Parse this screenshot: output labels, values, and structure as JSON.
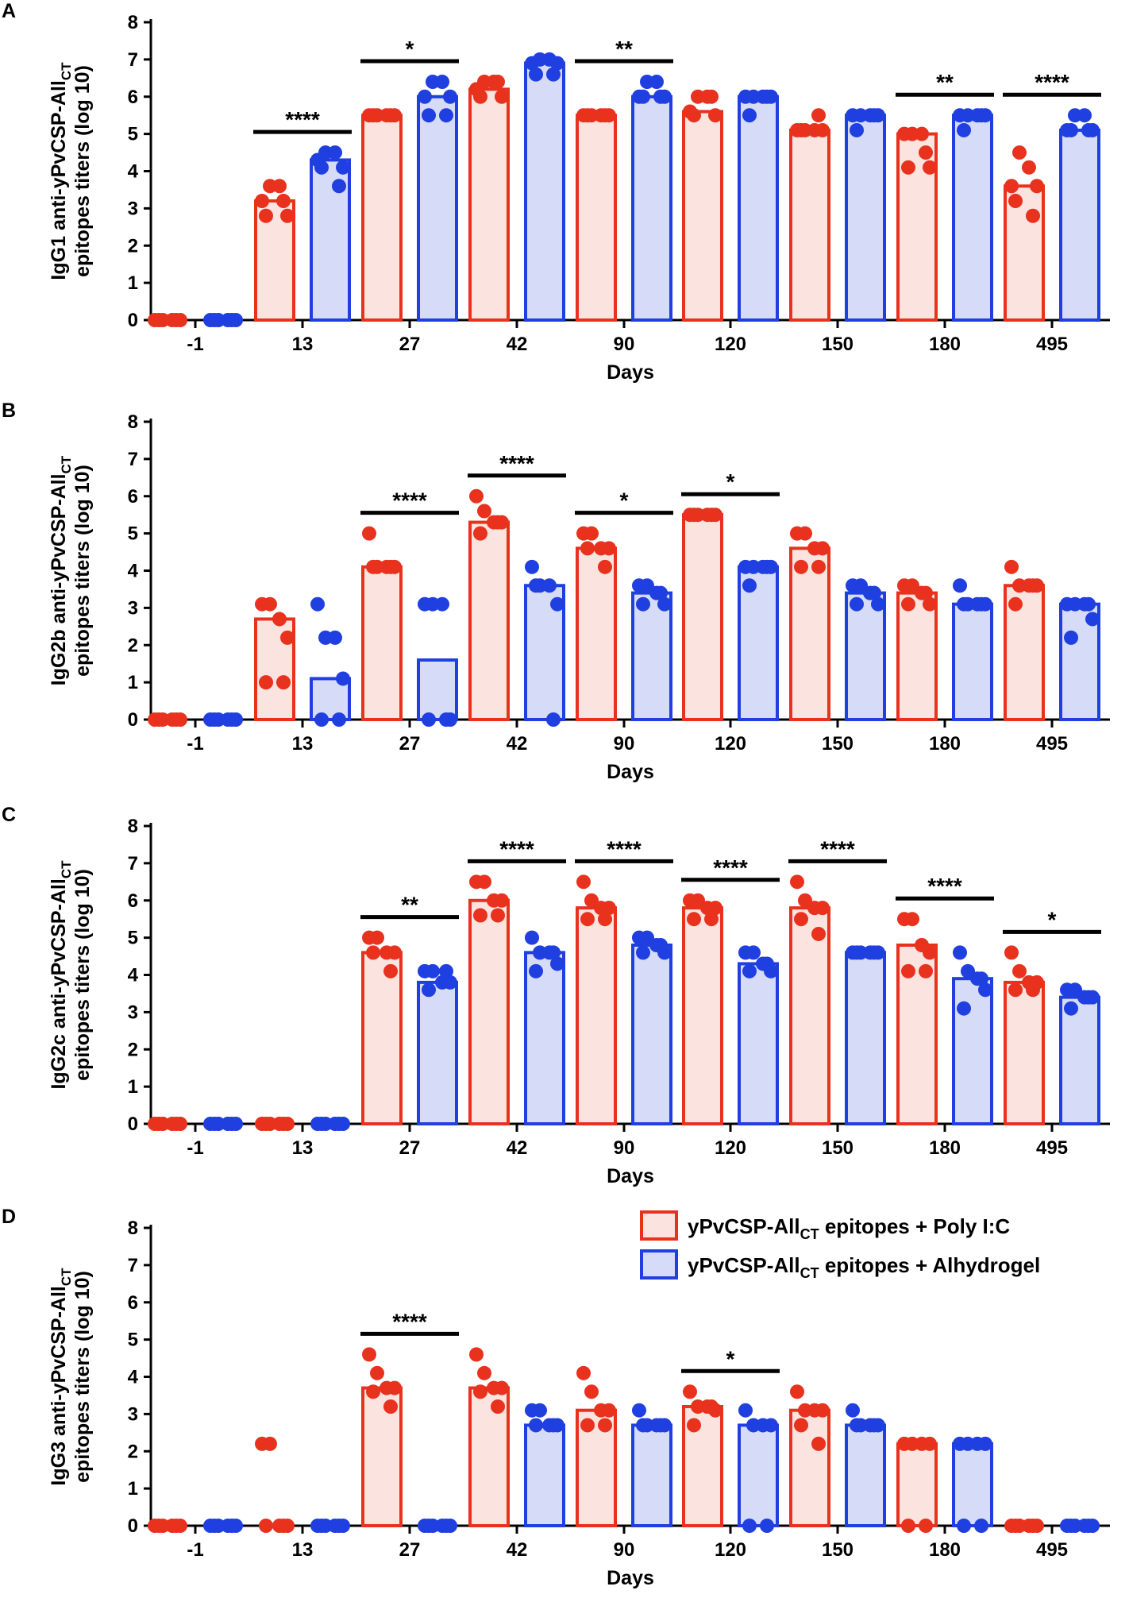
{
  "chart_data": [
    {
      "type": "bar",
      "panel": "A",
      "ylabel_line1": "IgG1 anti-yPvCSP-All",
      "ylabel_sub": "CT",
      "ylabel_line2": "epitopes titers (log 10)",
      "xlabel": "Days",
      "categories": [
        "-1",
        "13",
        "27",
        "42",
        "90",
        "120",
        "150",
        "180",
        "495"
      ],
      "ylim": [
        0,
        8
      ],
      "yticks": [
        "0",
        "1",
        "2",
        "3",
        "4",
        "5",
        "6",
        "7",
        "8"
      ],
      "series": [
        {
          "name": "Poly I:C",
          "values": [
            0,
            3.2,
            5.5,
            6.2,
            5.5,
            5.6,
            5.1,
            5.0,
            3.6
          ],
          "points": [
            [
              0,
              0,
              0,
              0,
              0,
              0
            ],
            [
              3.2,
              3.6,
              3.6,
              2.8,
              2.8,
              3.2
            ],
            [
              5.5,
              5.5,
              5.5,
              5.5,
              5.5,
              5.5
            ],
            [
              6.2,
              6.4,
              6.4,
              6.0,
              6.0,
              6.4
            ],
            [
              5.5,
              5.5,
              5.5,
              5.5,
              5.5,
              5.5
            ],
            [
              5.6,
              6.0,
              6.0,
              5.5,
              5.5,
              6.0
            ],
            [
              5.1,
              5.1,
              5.1,
              5.1,
              5.1,
              5.5
            ],
            [
              5.0,
              5.0,
              5.0,
              4.1,
              4.1,
              4.5
            ],
            [
              3.6,
              4.5,
              4.1,
              3.6,
              3.2,
              2.8
            ]
          ]
        },
        {
          "name": "Alhydrogel",
          "values": [
            0,
            4.3,
            6.0,
            6.9,
            6.0,
            6.0,
            5.5,
            5.5,
            5.1
          ],
          "points": [
            [
              0,
              0,
              0,
              0,
              0,
              0
            ],
            [
              4.3,
              4.5,
              4.5,
              4.1,
              4.1,
              3.6
            ],
            [
              6.0,
              6.4,
              6.4,
              6.0,
              5.5,
              5.5
            ],
            [
              6.9,
              7.0,
              7.0,
              6.9,
              6.6,
              6.6
            ],
            [
              6.0,
              6.4,
              6.4,
              6.0,
              6.0,
              6.0
            ],
            [
              6.0,
              6.0,
              6.0,
              6.0,
              5.5,
              6.0
            ],
            [
              5.5,
              5.5,
              5.5,
              5.5,
              5.1,
              5.5
            ],
            [
              5.5,
              5.5,
              5.5,
              5.5,
              5.1,
              5.5
            ],
            [
              5.1,
              5.5,
              5.5,
              5.1,
              5.1,
              5.1
            ]
          ]
        }
      ],
      "significance": [
        {
          "group": 1,
          "label": "****"
        },
        {
          "group": 2,
          "label": "*"
        },
        {
          "group": 4,
          "label": "**"
        },
        {
          "group": 7,
          "label": "**"
        },
        {
          "group": 8,
          "label": "****"
        }
      ]
    },
    {
      "type": "bar",
      "panel": "B",
      "ylabel_line1": "IgG2b anti-yPvCSP-All",
      "ylabel_sub": "CT",
      "ylabel_line2": "epitopes titers (log 10)",
      "xlabel": "Days",
      "categories": [
        "-1",
        "13",
        "27",
        "42",
        "90",
        "120",
        "150",
        "180",
        "495"
      ],
      "ylim": [
        0,
        8
      ],
      "yticks": [
        "0",
        "1",
        "2",
        "3",
        "4",
        "5",
        "6",
        "7",
        "8"
      ],
      "series": [
        {
          "name": "Poly I:C",
          "values": [
            0,
            2.7,
            4.1,
            5.3,
            4.6,
            5.5,
            4.6,
            3.4,
            3.6
          ],
          "points": [
            [
              0,
              0,
              0,
              0,
              0,
              0
            ],
            [
              3.1,
              3.1,
              2.7,
              2.2,
              1.0,
              1.0
            ],
            [
              5.0,
              4.1,
              4.1,
              4.1,
              4.1,
              4.1
            ],
            [
              6.0,
              5.6,
              5.3,
              5.3,
              5.0,
              5.3
            ],
            [
              5.0,
              5.0,
              4.6,
              4.6,
              4.6,
              4.1
            ],
            [
              5.5,
              5.5,
              5.5,
              5.5,
              5.5,
              5.5
            ],
            [
              5.0,
              5.0,
              4.6,
              4.6,
              4.1,
              4.1
            ],
            [
              3.6,
              3.6,
              3.4,
              3.1,
              3.1,
              3.4
            ],
            [
              4.1,
              3.6,
              3.6,
              3.6,
              3.1,
              3.6
            ]
          ]
        },
        {
          "name": "Alhydrogel",
          "values": [
            0,
            1.1,
            1.6,
            3.6,
            3.4,
            4.1,
            3.4,
            3.1,
            3.1
          ],
          "points": [
            [
              0,
              0,
              0,
              0,
              0,
              0
            ],
            [
              3.1,
              2.2,
              2.2,
              1.1,
              0,
              0
            ],
            [
              3.1,
              3.1,
              3.1,
              0,
              0,
              0
            ],
            [
              4.1,
              3.6,
              3.6,
              3.1,
              3.6,
              0
            ],
            [
              3.6,
              3.6,
              3.4,
              3.1,
              3.1,
              3.4
            ],
            [
              4.1,
              4.1,
              4.1,
              4.1,
              3.6,
              4.1
            ],
            [
              3.6,
              3.6,
              3.4,
              3.1,
              3.1,
              3.4
            ],
            [
              3.6,
              3.1,
              3.1,
              3.1,
              3.1,
              3.1
            ],
            [
              3.1,
              3.1,
              3.1,
              2.7,
              2.2,
              3.1
            ]
          ]
        }
      ],
      "significance": [
        {
          "group": 2,
          "label": "****"
        },
        {
          "group": 3,
          "label": "****"
        },
        {
          "group": 4,
          "label": "*"
        },
        {
          "group": 5,
          "label": "*"
        }
      ]
    },
    {
      "type": "bar",
      "panel": "C",
      "ylabel_line1": "IgG2c anti-yPvCSP-All",
      "ylabel_sub": "CT",
      "ylabel_line2": "epitopes titers (log 10)",
      "xlabel": "Days",
      "categories": [
        "-1",
        "13",
        "27",
        "42",
        "90",
        "120",
        "150",
        "180",
        "495"
      ],
      "ylim": [
        0,
        8
      ],
      "yticks": [
        "0",
        "1",
        "2",
        "3",
        "4",
        "5",
        "6",
        "7",
        "8"
      ],
      "series": [
        {
          "name": "Poly I:C",
          "values": [
            0,
            0,
            4.6,
            6.0,
            5.8,
            5.8,
            5.8,
            4.8,
            3.8
          ],
          "points": [
            [
              0,
              0,
              0,
              0,
              0,
              0
            ],
            [
              0,
              0,
              0,
              0,
              0,
              0
            ],
            [
              5.0,
              5.0,
              4.6,
              4.6,
              4.6,
              4.1
            ],
            [
              6.5,
              6.5,
              6.0,
              6.0,
              5.6,
              5.6
            ],
            [
              6.5,
              6.0,
              5.8,
              5.8,
              5.5,
              5.5
            ],
            [
              6.0,
              6.0,
              5.8,
              5.8,
              5.5,
              5.5
            ],
            [
              6.5,
              6.0,
              5.8,
              5.8,
              5.5,
              5.1
            ],
            [
              5.5,
              5.5,
              4.8,
              4.6,
              4.1,
              4.1
            ],
            [
              4.6,
              4.1,
              3.8,
              3.8,
              3.6,
              3.6
            ]
          ]
        },
        {
          "name": "Alhydrogel",
          "values": [
            0,
            0,
            3.8,
            4.6,
            4.8,
            4.3,
            4.6,
            3.9,
            3.4
          ],
          "points": [
            [
              0,
              0,
              0,
              0,
              0,
              0
            ],
            [
              0,
              0,
              0,
              0,
              0,
              0
            ],
            [
              4.1,
              4.1,
              3.8,
              3.8,
              3.6,
              4.1
            ],
            [
              5.0,
              4.6,
              4.6,
              4.3,
              4.1,
              4.6
            ],
            [
              5.0,
              5.0,
              4.8,
              4.6,
              4.6,
              4.8
            ],
            [
              4.6,
              4.6,
              4.3,
              4.1,
              4.1,
              4.3
            ],
            [
              4.6,
              4.6,
              4.6,
              4.6,
              4.6,
              4.6
            ],
            [
              4.6,
              4.1,
              3.9,
              3.6,
              3.1,
              3.9
            ],
            [
              3.6,
              3.6,
              3.4,
              3.4,
              3.1,
              3.4
            ]
          ]
        }
      ],
      "significance": [
        {
          "group": 2,
          "label": "**"
        },
        {
          "group": 3,
          "label": "****"
        },
        {
          "group": 4,
          "label": "****"
        },
        {
          "group": 5,
          "label": "****"
        },
        {
          "group": 6,
          "label": "****"
        },
        {
          "group": 7,
          "label": "****"
        },
        {
          "group": 8,
          "label": "*"
        }
      ]
    },
    {
      "type": "bar",
      "panel": "D",
      "ylabel_line1": "IgG3 anti-yPvCSP-All",
      "ylabel_sub": "CT",
      "ylabel_line2": "epitopes titers (log 10)",
      "xlabel": "Days",
      "categories": [
        "-1",
        "13",
        "27",
        "42",
        "90",
        "120",
        "150",
        "180",
        "495"
      ],
      "ylim": [
        0,
        8
      ],
      "yticks": [
        "0",
        "1",
        "2",
        "3",
        "4",
        "5",
        "6",
        "7",
        "8"
      ],
      "series": [
        {
          "name": "Poly I:C",
          "values": [
            0,
            0,
            3.7,
            3.7,
            3.1,
            3.2,
            3.1,
            2.2,
            0
          ],
          "points": [
            [
              0,
              0,
              0,
              0,
              0,
              0
            ],
            [
              2.2,
              2.2,
              0,
              0,
              0,
              0
            ],
            [
              4.6,
              4.1,
              3.7,
              3.7,
              3.6,
              3.2
            ],
            [
              4.6,
              4.1,
              3.7,
              3.7,
              3.6,
              3.2
            ],
            [
              4.1,
              3.6,
              3.1,
              3.1,
              2.7,
              2.7
            ],
            [
              3.6,
              3.2,
              3.2,
              3.1,
              2.7,
              3.2
            ],
            [
              3.6,
              3.1,
              3.1,
              3.1,
              2.7,
              2.2
            ],
            [
              2.2,
              2.2,
              2.2,
              2.2,
              0,
              0
            ],
            [
              0,
              0,
              0,
              0,
              0,
              0
            ]
          ]
        },
        {
          "name": "Alhydrogel",
          "values": [
            0,
            0,
            0,
            2.7,
            2.7,
            2.7,
            2.7,
            2.2,
            0
          ],
          "points": [
            [
              0,
              0,
              0,
              0,
              0,
              0
            ],
            [
              0,
              0,
              0,
              0,
              0,
              0
            ],
            [
              0,
              0,
              0,
              0,
              0,
              0
            ],
            [
              3.1,
              3.1,
              2.7,
              2.7,
              2.7,
              2.7
            ],
            [
              3.1,
              2.7,
              2.7,
              2.7,
              2.7,
              2.7
            ],
            [
              3.1,
              2.7,
              2.7,
              2.7,
              0,
              0
            ],
            [
              3.1,
              2.7,
              2.7,
              2.7,
              2.7,
              2.7
            ],
            [
              2.2,
              2.2,
              2.2,
              2.2,
              0,
              0
            ],
            [
              0,
              0,
              0,
              0,
              0,
              0
            ]
          ]
        }
      ],
      "significance": [
        {
          "group": 2,
          "label": "****"
        },
        {
          "group": 5,
          "label": "*"
        }
      ]
    }
  ],
  "legend": {
    "item1_main": "yPvCSP-All",
    "item1_sub": "CT",
    "item1_rest": " epitopes + Poly I:C",
    "item2_main": "yPvCSP-All",
    "item2_sub": "CT",
    "item2_rest": " epitopes + Alhydrogel"
  },
  "colors": {
    "poly_stroke": "#e8321e",
    "poly_fill": "#fbe3e0",
    "alhy_stroke": "#1f3fe0",
    "alhy_fill": "#d6dcf7",
    "axis": "#000000"
  }
}
